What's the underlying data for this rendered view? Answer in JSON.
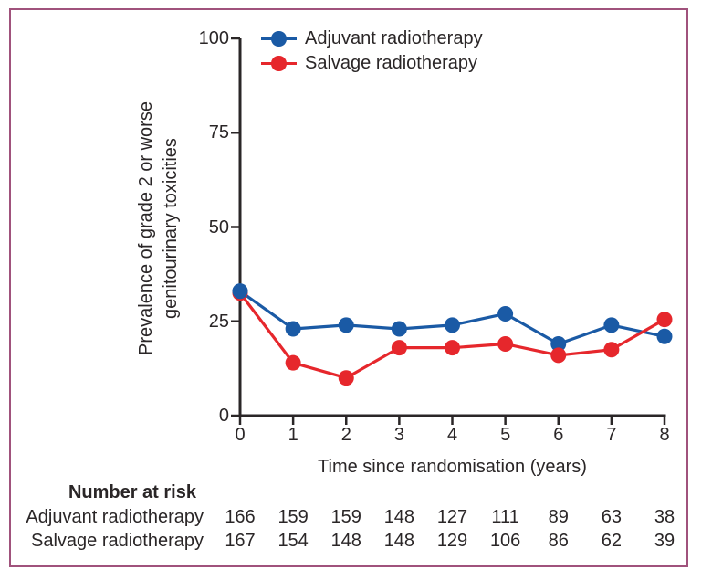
{
  "colors": {
    "adjuvant": "#1a5aa5",
    "salvage": "#e6272c",
    "axis": "#2a2627",
    "text": "#2a2627",
    "frame_border": "#a0527c"
  },
  "chart_data": {
    "type": "line",
    "x": [
      0,
      1,
      2,
      3,
      4,
      5,
      6,
      7,
      8
    ],
    "series": [
      {
        "name": "Adjuvant radiotherapy",
        "color": "#1a5aa5",
        "values": [
          33,
          23,
          24,
          23,
          24,
          27,
          19,
          24,
          21
        ]
      },
      {
        "name": "Salvage radiotherapy",
        "color": "#e6272c",
        "values": [
          32.5,
          14,
          10,
          18,
          18,
          19,
          16,
          17.5,
          25.5
        ]
      }
    ],
    "title": "",
    "xlabel": "Time since randomisation (years)",
    "ylabel": "Prevalence of grade 2 or worse genitourinary toxicities",
    "ylabel_lines": [
      "Prevalence of grade 2 or worse",
      "genitourinary toxicities"
    ],
    "xlim": [
      0,
      8
    ],
    "ylim": [
      0,
      100
    ],
    "xticks": [
      0,
      1,
      2,
      3,
      4,
      5,
      6,
      7,
      8
    ],
    "yticks": [
      0,
      25,
      50,
      75,
      100
    ],
    "grid": "off",
    "legend_position": "top-left-inside"
  },
  "risk_table": {
    "heading": "Number at risk",
    "rows": [
      {
        "label": "Adjuvant radiotherapy",
        "values": [
          166,
          159,
          159,
          148,
          127,
          111,
          89,
          63,
          38
        ]
      },
      {
        "label": "Salvage radiotherapy",
        "values": [
          167,
          154,
          148,
          148,
          129,
          106,
          86,
          62,
          39
        ]
      }
    ]
  }
}
